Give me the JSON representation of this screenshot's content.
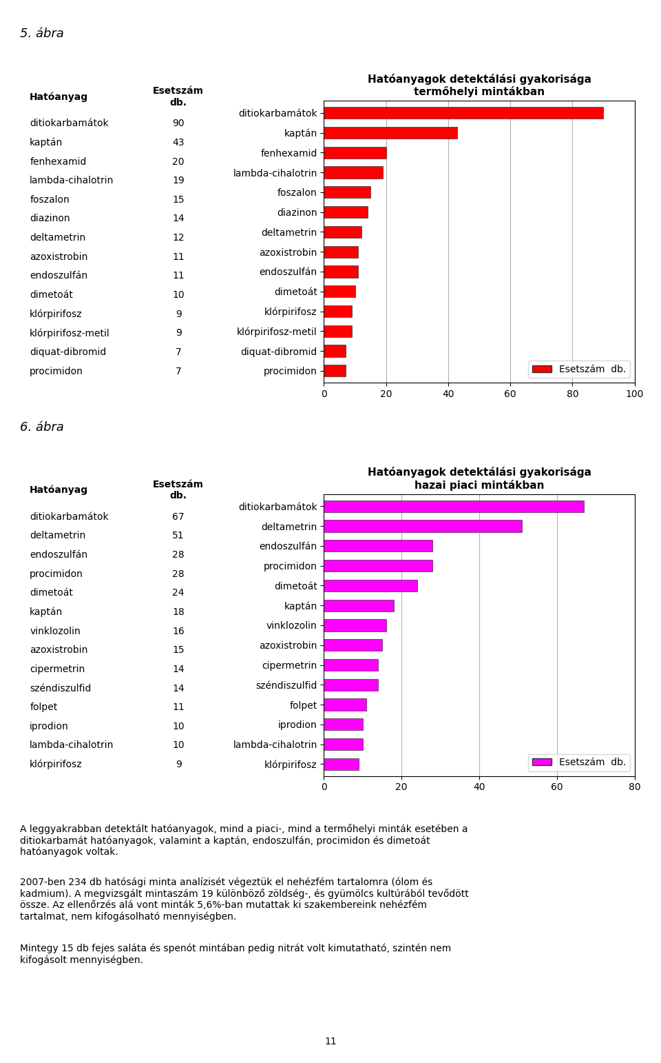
{
  "chart_data": [
    {
      "type": "bar",
      "orientation": "horizontal",
      "title": "Hatóanyagok detektálási gyakorisága",
      "subtitle": "termőhelyi mintákban",
      "categories": [
        "procimidon",
        "diquat-dibromid",
        "klórpirifosz-metil",
        "klórpirifosz",
        "dimetoát",
        "endoszulfán",
        "azoxistrobin",
        "deltametrin",
        "diazinon",
        "foszalon",
        "lambda-cihalotrin",
        "fenhexamid",
        "kaptán",
        "ditiokarbamátok"
      ],
      "series": [
        {
          "name": "Esetszám  db.",
          "color": "#FF0000",
          "values": [
            7,
            7,
            9,
            9,
            10,
            11,
            11,
            12,
            14,
            15,
            19,
            20,
            43,
            90
          ]
        }
      ],
      "xlim": [
        0,
        100
      ],
      "xticks": [
        0,
        20,
        40,
        60,
        80,
        100
      ],
      "grid": true,
      "legend": "lower right",
      "annotations": [
        "5. ábra"
      ],
      "table": {
        "columns": [
          "Hatóanyag",
          "Esetszám\ndb."
        ],
        "rows": [
          [
            "ditiokarbamátok",
            90
          ],
          [
            "kaptán",
            43
          ],
          [
            "fenhexamid",
            20
          ],
          [
            "lambda-cihalotrin",
            19
          ],
          [
            "foszalon",
            15
          ],
          [
            "diazinon",
            14
          ],
          [
            "deltametrin",
            12
          ],
          [
            "azoxistrobin",
            11
          ],
          [
            "endoszulfán",
            11
          ],
          [
            "dimetoát",
            10
          ],
          [
            "klórpirifosz",
            9
          ],
          [
            "klórpirifosz-metil",
            9
          ],
          [
            "diquat-dibromid",
            7
          ],
          [
            "procimidon",
            7
          ]
        ]
      }
    },
    {
      "type": "bar",
      "orientation": "horizontal",
      "title": "Hatóanyagok detektálási gyakorisága",
      "subtitle": "hazai piaci mintákban",
      "categories": [
        "klórpirifosz",
        "lambda-cihalotrin",
        "iprodion",
        "folpet",
        "széndiszulfid",
        "cipermetrin",
        "azoxistrobin",
        "vinklozolin",
        "kaptán",
        "dimetoát",
        "procimidon",
        "endoszulfán",
        "deltametrin",
        "ditiokarbamátok"
      ],
      "series": [
        {
          "name": "Esetszám  db.",
          "color": "#FF00FF",
          "values": [
            9,
            10,
            10,
            11,
            14,
            14,
            15,
            16,
            18,
            24,
            28,
            28,
            51,
            67
          ]
        }
      ],
      "xlim": [
        0,
        80
      ],
      "xticks": [
        0,
        20,
        40,
        60,
        80
      ],
      "grid": true,
      "legend": "lower right",
      "annotations": [
        "6. ábra"
      ],
      "table": {
        "columns": [
          "Hatóanyag",
          "Esetszám\ndb."
        ],
        "rows": [
          [
            "ditiokarbamátok",
            67
          ],
          [
            "deltametrin",
            51
          ],
          [
            "endoszulfán",
            28
          ],
          [
            "procimidon",
            28
          ],
          [
            "dimetoát",
            24
          ],
          [
            "kaptán",
            18
          ],
          [
            "vinklozolin",
            16
          ],
          [
            "azoxistrobin",
            15
          ],
          [
            "cipermetrin",
            14
          ],
          [
            "széndiszulfid",
            14
          ],
          [
            "folpet",
            11
          ],
          [
            "iprodion",
            10
          ],
          [
            "lambda-cihalotrin",
            10
          ],
          [
            "klórpirifosz",
            9
          ]
        ]
      }
    }
  ],
  "annotations": [
    "A leggyakrabban detektált hatóanyagok, mind a piaci-, mind a termőhelyi minták esetében a\nditiokarbamát hatóanyagok, valamint a kaptán, endoszulfán, procimidon és dimetoát\nhatóanyagok voltak.",
    "2007-ben 234 db hatósági minta analízisét végeztük el nehézfém tartalomra (ólom és\nkadmium). A megvizsgált mintaszám 19 különböző zöldség-, és gyümölcs kultúrából tevődött\nössze. Az ellenőrzés alá vont minták 5,6%-ban mutattak ki szakembereink nehézfém\ntartalmat, nem kifogásolható mennyiségben.",
    "Mintegy 15 db fejes saláta és spenót mintában pedig nitrát volt kimutatható, szintén nem\nkifogásolt mennyiségben."
  ],
  "footer": "11"
}
